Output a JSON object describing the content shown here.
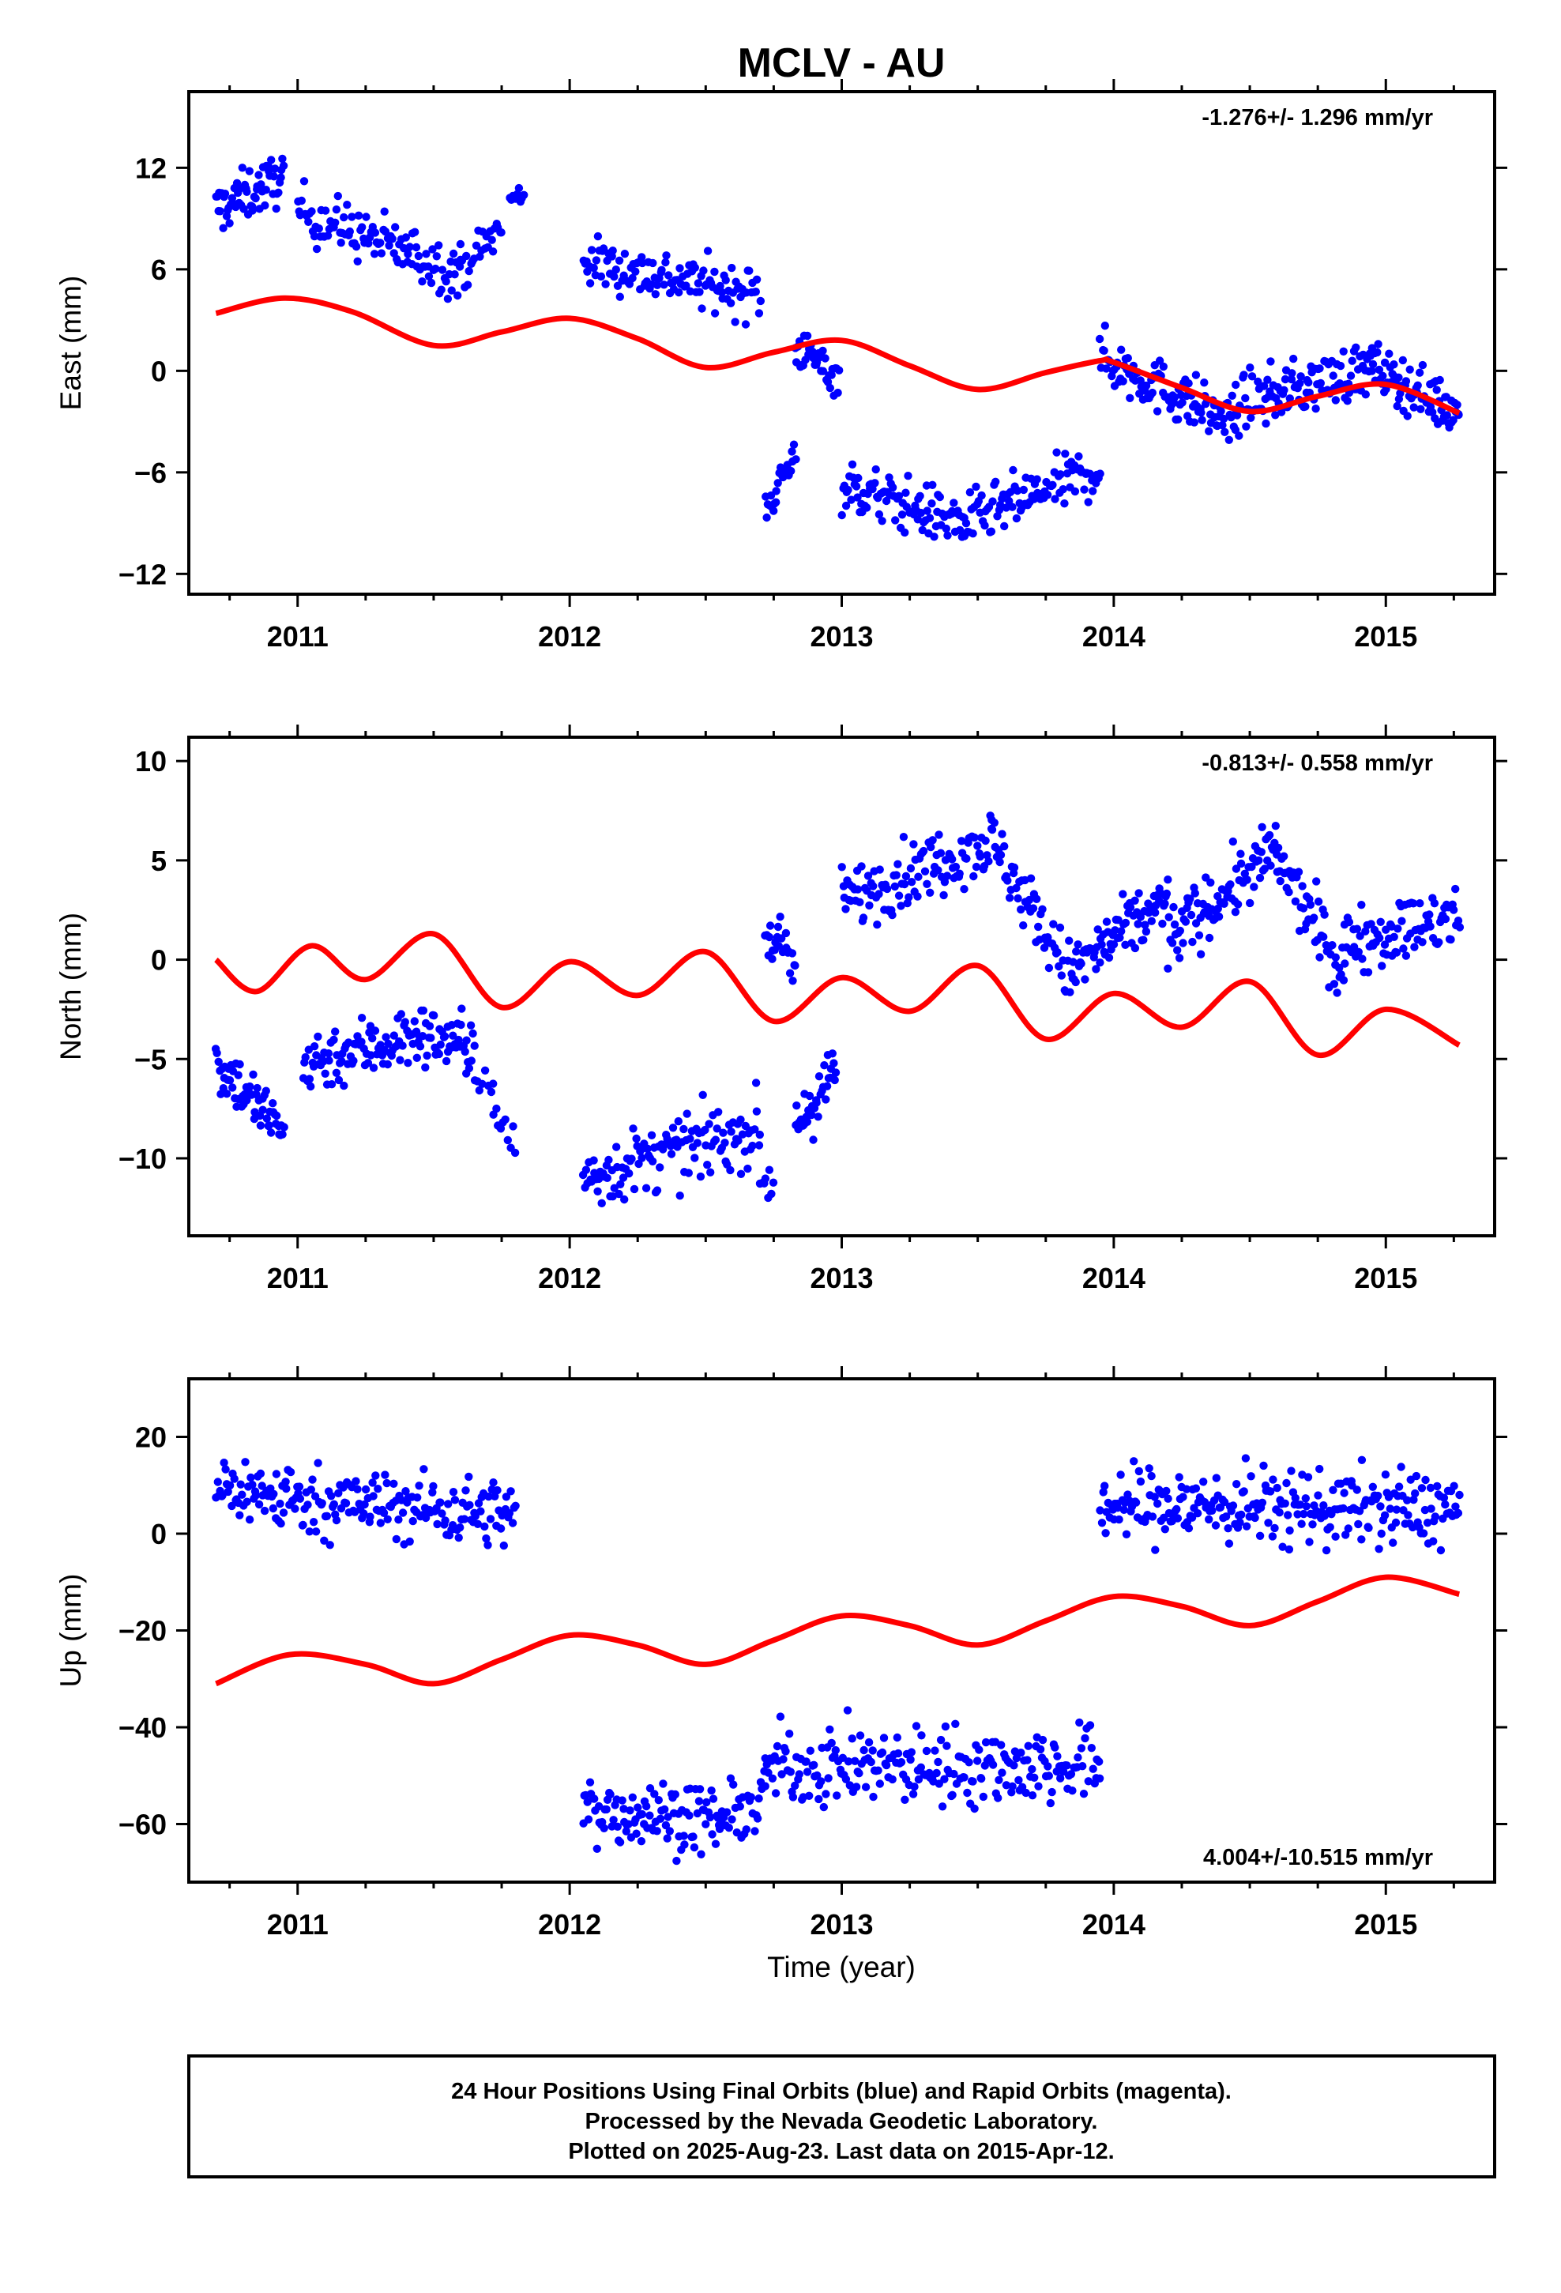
{
  "title": "MCLV - AU",
  "chart_data": [
    {
      "type": "scatter",
      "ylabel": "East (mm)",
      "xlabel": "",
      "xlim": [
        2010.6,
        2015.4
      ],
      "ylim": [
        -13.2,
        16.5
      ],
      "xticks": [
        2011,
        2012,
        2013,
        2014,
        2015
      ],
      "xtick_labels": [
        "2011",
        "2012",
        "2013",
        "2014",
        "2015"
      ],
      "yticks": [
        12,
        6,
        0,
        -6,
        -12
      ],
      "ytick_labels": [
        "12",
        "6",
        "0",
        "−6",
        "−12"
      ],
      "rate_label": "-1.276+/- 1.296 mm/yr",
      "rate_position": "top-right",
      "point_color": "#0000ff",
      "series": [
        {
          "style": "points",
          "x_start": 2010.7,
          "x_end": 2010.95,
          "y_start": 9.5,
          "y_end": 11.5,
          "spread": 1.5,
          "n": 60
        },
        {
          "style": "points",
          "x_start": 2011.0,
          "x_end": 2011.6,
          "y_start": 9.5,
          "y_end": 5.8,
          "spread": 1.6,
          "n": 110
        },
        {
          "style": "points",
          "x_start": 2011.6,
          "x_end": 2011.75,
          "y_start": 6.0,
          "y_end": 8.5,
          "spread": 1.2,
          "n": 25
        },
        {
          "style": "points",
          "x_start": 2011.78,
          "x_end": 2011.83,
          "y_start": 10.0,
          "y_end": 10.5,
          "spread": 0.8,
          "n": 10
        },
        {
          "style": "points",
          "x_start": 2012.05,
          "x_end": 2012.7,
          "y_start": 6.5,
          "y_end": 4.5,
          "spread": 1.5,
          "n": 120
        },
        {
          "style": "points",
          "x_start": 2012.72,
          "x_end": 2012.83,
          "y_start": -8.0,
          "y_end": -5.0,
          "spread": 1.3,
          "n": 25
        },
        {
          "style": "points",
          "x_start": 2012.83,
          "x_end": 2012.99,
          "y_start": 1.5,
          "y_end": -0.5,
          "spread": 1.2,
          "n": 35
        },
        {
          "style": "points",
          "x_start": 2013.0,
          "x_end": 2013.45,
          "y_start": -6.8,
          "y_end": -9.0,
          "spread": 1.6,
          "n": 95
        },
        {
          "style": "points",
          "x_start": 2013.45,
          "x_end": 2013.95,
          "y_start": -9.0,
          "y_end": -5.8,
          "spread": 1.6,
          "n": 95
        },
        {
          "style": "points",
          "x_start": 2013.95,
          "x_end": 2014.45,
          "y_start": 0.8,
          "y_end": -3.2,
          "spread": 1.6,
          "n": 110
        },
        {
          "style": "points",
          "x_start": 2014.45,
          "x_end": 2014.95,
          "y_start": -2.0,
          "y_end": 0.2,
          "spread": 1.6,
          "n": 110
        },
        {
          "style": "points",
          "x_start": 2014.95,
          "x_end": 2015.27,
          "y_start": 0.2,
          "y_end": -2.5,
          "spread": 1.5,
          "n": 75
        }
      ],
      "model": {
        "color": "#ff0000",
        "x": [
          2010.7,
          2010.95,
          2011.2,
          2011.5,
          2011.75,
          2012.0,
          2012.25,
          2012.5,
          2012.75,
          2013.0,
          2013.25,
          2013.5,
          2013.75,
          2013.95,
          2014.0,
          2014.25,
          2014.5,
          2014.75,
          2015.0,
          2015.27
        ],
        "y": [
          3.4,
          4.3,
          3.5,
          1.5,
          2.3,
          3.1,
          1.9,
          0.2,
          1.1,
          1.8,
          0.3,
          -1.1,
          -0.1,
          0.6,
          0.5,
          -1.0,
          -2.4,
          -1.5,
          -0.8,
          -2.5
        ]
      }
    },
    {
      "type": "scatter",
      "ylabel": "North (mm)",
      "xlabel": "",
      "xlim": [
        2010.6,
        2015.4
      ],
      "ylim": [
        -13.9,
        11.2
      ],
      "xticks": [
        2011,
        2012,
        2013,
        2014,
        2015
      ],
      "xtick_labels": [
        "2011",
        "2012",
        "2013",
        "2014",
        "2015"
      ],
      "yticks": [
        10,
        5,
        0,
        -5,
        -10
      ],
      "ytick_labels": [
        "10",
        "5",
        "0",
        "−5",
        "−10"
      ],
      "rate_label": "-0.813+/- 0.558 mm/yr",
      "rate_position": "top-right",
      "point_color": "#0000ff",
      "series": [
        {
          "style": "points",
          "x_start": 2010.7,
          "x_end": 2010.95,
          "y_start": -5.0,
          "y_end": -8.8,
          "spread": 1.5,
          "n": 60
        },
        {
          "style": "points",
          "x_start": 2011.02,
          "x_end": 2011.45,
          "y_start": -5.2,
          "y_end": -3.8,
          "spread": 1.6,
          "n": 90
        },
        {
          "style": "points",
          "x_start": 2011.45,
          "x_end": 2011.65,
          "y_start": -3.8,
          "y_end": -4.3,
          "spread": 1.5,
          "n": 45
        },
        {
          "style": "points",
          "x_start": 2011.65,
          "x_end": 2011.72,
          "y_start": -6.0,
          "y_end": -6.5,
          "spread": 0.8,
          "n": 8
        },
        {
          "style": "points",
          "x_start": 2011.72,
          "x_end": 2011.8,
          "y_start": -8.0,
          "y_end": -9.2,
          "spread": 1.0,
          "n": 10
        },
        {
          "style": "points",
          "x_start": 2012.05,
          "x_end": 2012.7,
          "y_start": -11.0,
          "y_end": -8.5,
          "spread": 1.7,
          "n": 125
        },
        {
          "style": "points",
          "x_start": 2012.7,
          "x_end": 2012.75,
          "y_start": -11.0,
          "y_end": -11.5,
          "spread": 1.0,
          "n": 8
        },
        {
          "style": "points",
          "x_start": 2012.72,
          "x_end": 2012.83,
          "y_start": 1.5,
          "y_end": -0.5,
          "spread": 1.3,
          "n": 25
        },
        {
          "style": "points",
          "x_start": 2012.83,
          "x_end": 2012.98,
          "y_start": -8.5,
          "y_end": -5.5,
          "spread": 1.5,
          "n": 35
        },
        {
          "style": "points",
          "x_start": 2013.0,
          "x_end": 2013.55,
          "y_start": 3.0,
          "y_end": 6.0,
          "spread": 1.6,
          "n": 110
        },
        {
          "style": "points",
          "x_start": 2013.55,
          "x_end": 2013.85,
          "y_start": 6.0,
          "y_end": -1.0,
          "spread": 1.6,
          "n": 60
        },
        {
          "style": "points",
          "x_start": 2013.85,
          "x_end": 2014.2,
          "y_start": -0.5,
          "y_end": 3.0,
          "spread": 1.6,
          "n": 80
        },
        {
          "style": "points",
          "x_start": 2014.2,
          "x_end": 2014.6,
          "y_start": 1.0,
          "y_end": 5.5,
          "spread": 1.6,
          "n": 90
        },
        {
          "style": "points",
          "x_start": 2014.6,
          "x_end": 2014.85,
          "y_start": 5.0,
          "y_end": -0.8,
          "spread": 1.6,
          "n": 55
        },
        {
          "style": "points",
          "x_start": 2014.85,
          "x_end": 2015.27,
          "y_start": 1.0,
          "y_end": 2.0,
          "spread": 1.6,
          "n": 85
        }
      ],
      "model": {
        "color": "#ff0000",
        "x": [
          2010.7,
          2010.85,
          2011.05,
          2011.25,
          2011.5,
          2011.75,
          2012.0,
          2012.25,
          2012.5,
          2012.75,
          2013.0,
          2013.25,
          2013.5,
          2013.75,
          2014.0,
          2014.25,
          2014.5,
          2014.75,
          2015.0,
          2015.27
        ],
        "y": [
          0.0,
          -1.6,
          0.7,
          -1.0,
          1.3,
          -2.4,
          -0.1,
          -1.8,
          0.4,
          -3.1,
          -0.9,
          -2.6,
          -0.3,
          -4.0,
          -1.7,
          -3.4,
          -1.1,
          -4.8,
          -2.5,
          -4.3
        ]
      }
    },
    {
      "type": "scatter",
      "ylabel": "Up (mm)",
      "xlabel": "Time (year)",
      "xlim": [
        2010.6,
        2015.4
      ],
      "ylim": [
        -72,
        32
      ],
      "xticks": [
        2011,
        2012,
        2013,
        2014,
        2015
      ],
      "xtick_labels": [
        "2011",
        "2012",
        "2013",
        "2014",
        "2015"
      ],
      "yticks": [
        20,
        0,
        -20,
        -40,
        -60
      ],
      "ytick_labels": [
        "20",
        "0",
        "−20",
        "−40",
        "−60"
      ],
      "rate_label": "4.004+/-10.515 mm/yr",
      "rate_position": "bottom-right",
      "point_color": "#0000ff",
      "series": [
        {
          "style": "points",
          "x_start": 2010.7,
          "x_end": 2011.0,
          "y_start": 10.0,
          "y_end": 7.0,
          "spread": 7,
          "n": 60
        },
        {
          "style": "points",
          "x_start": 2011.0,
          "x_end": 2011.8,
          "y_start": 7.0,
          "y_end": 4.0,
          "spread": 7,
          "n": 150
        },
        {
          "style": "points",
          "x_start": 2012.05,
          "x_end": 2012.55,
          "y_start": -57.0,
          "y_end": -59.0,
          "spread": 7,
          "n": 100
        },
        {
          "style": "points",
          "x_start": 2012.55,
          "x_end": 2012.72,
          "y_start": -60.0,
          "y_end": -55.0,
          "spread": 6,
          "n": 30
        },
        {
          "style": "points",
          "x_start": 2012.72,
          "x_end": 2013.95,
          "y_start": -48.0,
          "y_end": -48.0,
          "spread": 8,
          "n": 230
        },
        {
          "style": "points",
          "x_start": 2013.95,
          "x_end": 2015.27,
          "y_start": 6.0,
          "y_end": 5.0,
          "spread": 8,
          "n": 260
        }
      ],
      "model": {
        "color": "#ff0000",
        "x": [
          2010.7,
          2010.97,
          2011.25,
          2011.5,
          2011.75,
          2012.0,
          2012.25,
          2012.5,
          2012.75,
          2013.0,
          2013.25,
          2013.5,
          2013.75,
          2014.0,
          2014.25,
          2014.5,
          2014.75,
          2015.0,
          2015.27
        ],
        "y": [
          -31.0,
          -25.0,
          -27.0,
          -31.0,
          -26.0,
          -21.0,
          -23.0,
          -27.0,
          -22.0,
          -17.0,
          -19.0,
          -23.0,
          -18.0,
          -13.0,
          -15.0,
          -19.0,
          -14.0,
          -9.0,
          -12.5
        ]
      }
    }
  ],
  "footer": {
    "line1": "24 Hour Positions Using Final Orbits (blue) and Rapid Orbits (magenta).",
    "line2": "Processed by the Nevada Geodetic Laboratory.",
    "line3": "Plotted on 2025-Aug-23. Last data on 2015-Apr-12."
  }
}
